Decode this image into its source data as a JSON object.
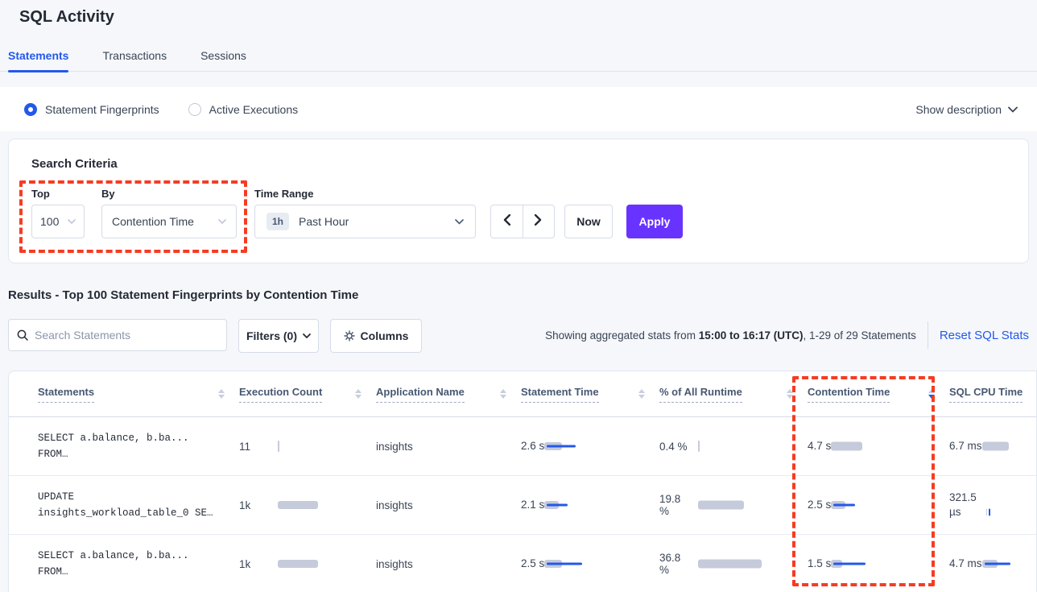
{
  "colors": {
    "accent_blue": "#2458eb",
    "apply_purple": "#6933ff",
    "annotation_red": "#f63c22",
    "bar_gray": "#c5cbdb",
    "page_background": "#f5f7fa"
  },
  "header": {
    "title": "SQL Activity",
    "tabs": [
      {
        "label": "Statements",
        "active": true
      },
      {
        "label": "Transactions",
        "active": false
      },
      {
        "label": "Sessions",
        "active": false
      }
    ]
  },
  "view_toggle": {
    "options": [
      {
        "label": "Statement Fingerprints",
        "selected": true
      },
      {
        "label": "Active Executions",
        "selected": false
      }
    ],
    "show_description_label": "Show description"
  },
  "search_criteria": {
    "title": "Search Criteria",
    "top": {
      "label": "Top",
      "value": "100"
    },
    "by": {
      "label": "By",
      "value": "Contention Time"
    },
    "time_range": {
      "label": "Time Range",
      "badge": "1h",
      "value": "Past Hour"
    },
    "now_label": "Now",
    "apply_label": "Apply"
  },
  "results": {
    "heading": "Results - Top 100 Statement Fingerprints by Contention Time",
    "search_placeholder": "Search Statements",
    "filters_label": "Filters (0)",
    "columns_label": "Columns",
    "showing_prefix": "Showing aggregated stats from ",
    "showing_range": "15:00 to 16:17 (UTC)",
    "showing_suffix": ", 1-29 of 29 Statements",
    "reset_label": "Reset SQL Stats"
  },
  "table": {
    "columns": [
      {
        "label": "Statements",
        "sort": "none"
      },
      {
        "label": "Execution Count",
        "sort": "none"
      },
      {
        "label": "Application Name",
        "sort": "none"
      },
      {
        "label": "Statement Time",
        "sort": "none"
      },
      {
        "label": "% of All Runtime",
        "sort": "none"
      },
      {
        "label": "Contention Time",
        "sort": "desc"
      },
      {
        "label": "SQL CPU Time",
        "sort": "none"
      }
    ],
    "rows": [
      {
        "statement_line1": "SELECT a.balance, b.ba...",
        "statement_line2": "FROM…",
        "app_name": "insights",
        "exec": {
          "value": "11",
          "bar": {
            "gw": 2,
            "gh": 14
          }
        },
        "stmt": {
          "value": "2.6 s",
          "bar": {
            "gw": 22,
            "gh": 10,
            "bw": 36,
            "bh": 3
          }
        },
        "runtime": {
          "value": "0.4 %",
          "bar": {
            "gw": 2,
            "gh": 14
          }
        },
        "cont": {
          "value": "4.7 s",
          "bar": {
            "gw": 39,
            "gh": 11
          }
        },
        "cpu": {
          "value": "6.7 ms",
          "bar": {
            "gw": 33,
            "gh": 11
          }
        }
      },
      {
        "statement_line1": "UPDATE",
        "statement_line2": "insights_workload_table_0 SE…",
        "app_name": "insights",
        "exec": {
          "value": "1k",
          "bar": {
            "gw": 50,
            "gh": 10
          }
        },
        "stmt": {
          "value": "2.1 s",
          "bar": {
            "gw": 18,
            "gh": 10,
            "bw": 26,
            "bh": 3
          }
        },
        "runtime": {
          "value": "19.8 %",
          "bar": {
            "gw": 57,
            "gh": 11
          }
        },
        "cont": {
          "value": "2.5 s",
          "bar": {
            "gw": 18,
            "gh": 10,
            "bw": 27,
            "bh": 3
          }
        },
        "cpu": {
          "value": "321.5 µs",
          "bar": {
            "gw": 1,
            "gh": 9,
            "bw": 2,
            "bh": 9
          }
        }
      },
      {
        "statement_line1": "SELECT a.balance, b.ba...",
        "statement_line2": "FROM…",
        "app_name": "insights",
        "exec": {
          "value": "1k",
          "bar": {
            "gw": 50,
            "gh": 10
          }
        },
        "stmt": {
          "value": "2.5 s",
          "bar": {
            "gw": 22,
            "gh": 10,
            "bw": 44,
            "bh": 3
          }
        },
        "runtime": {
          "value": "36.8 %",
          "bar": {
            "gw": 79,
            "gh": 11
          }
        },
        "cont": {
          "value": "1.5 s",
          "bar": {
            "gw": 14,
            "gh": 10,
            "bw": 40,
            "bh": 3
          }
        },
        "cpu": {
          "value": "4.7 ms",
          "bar": {
            "gw": 19,
            "gh": 10,
            "bw": 32,
            "bh": 3
          }
        }
      }
    ]
  }
}
